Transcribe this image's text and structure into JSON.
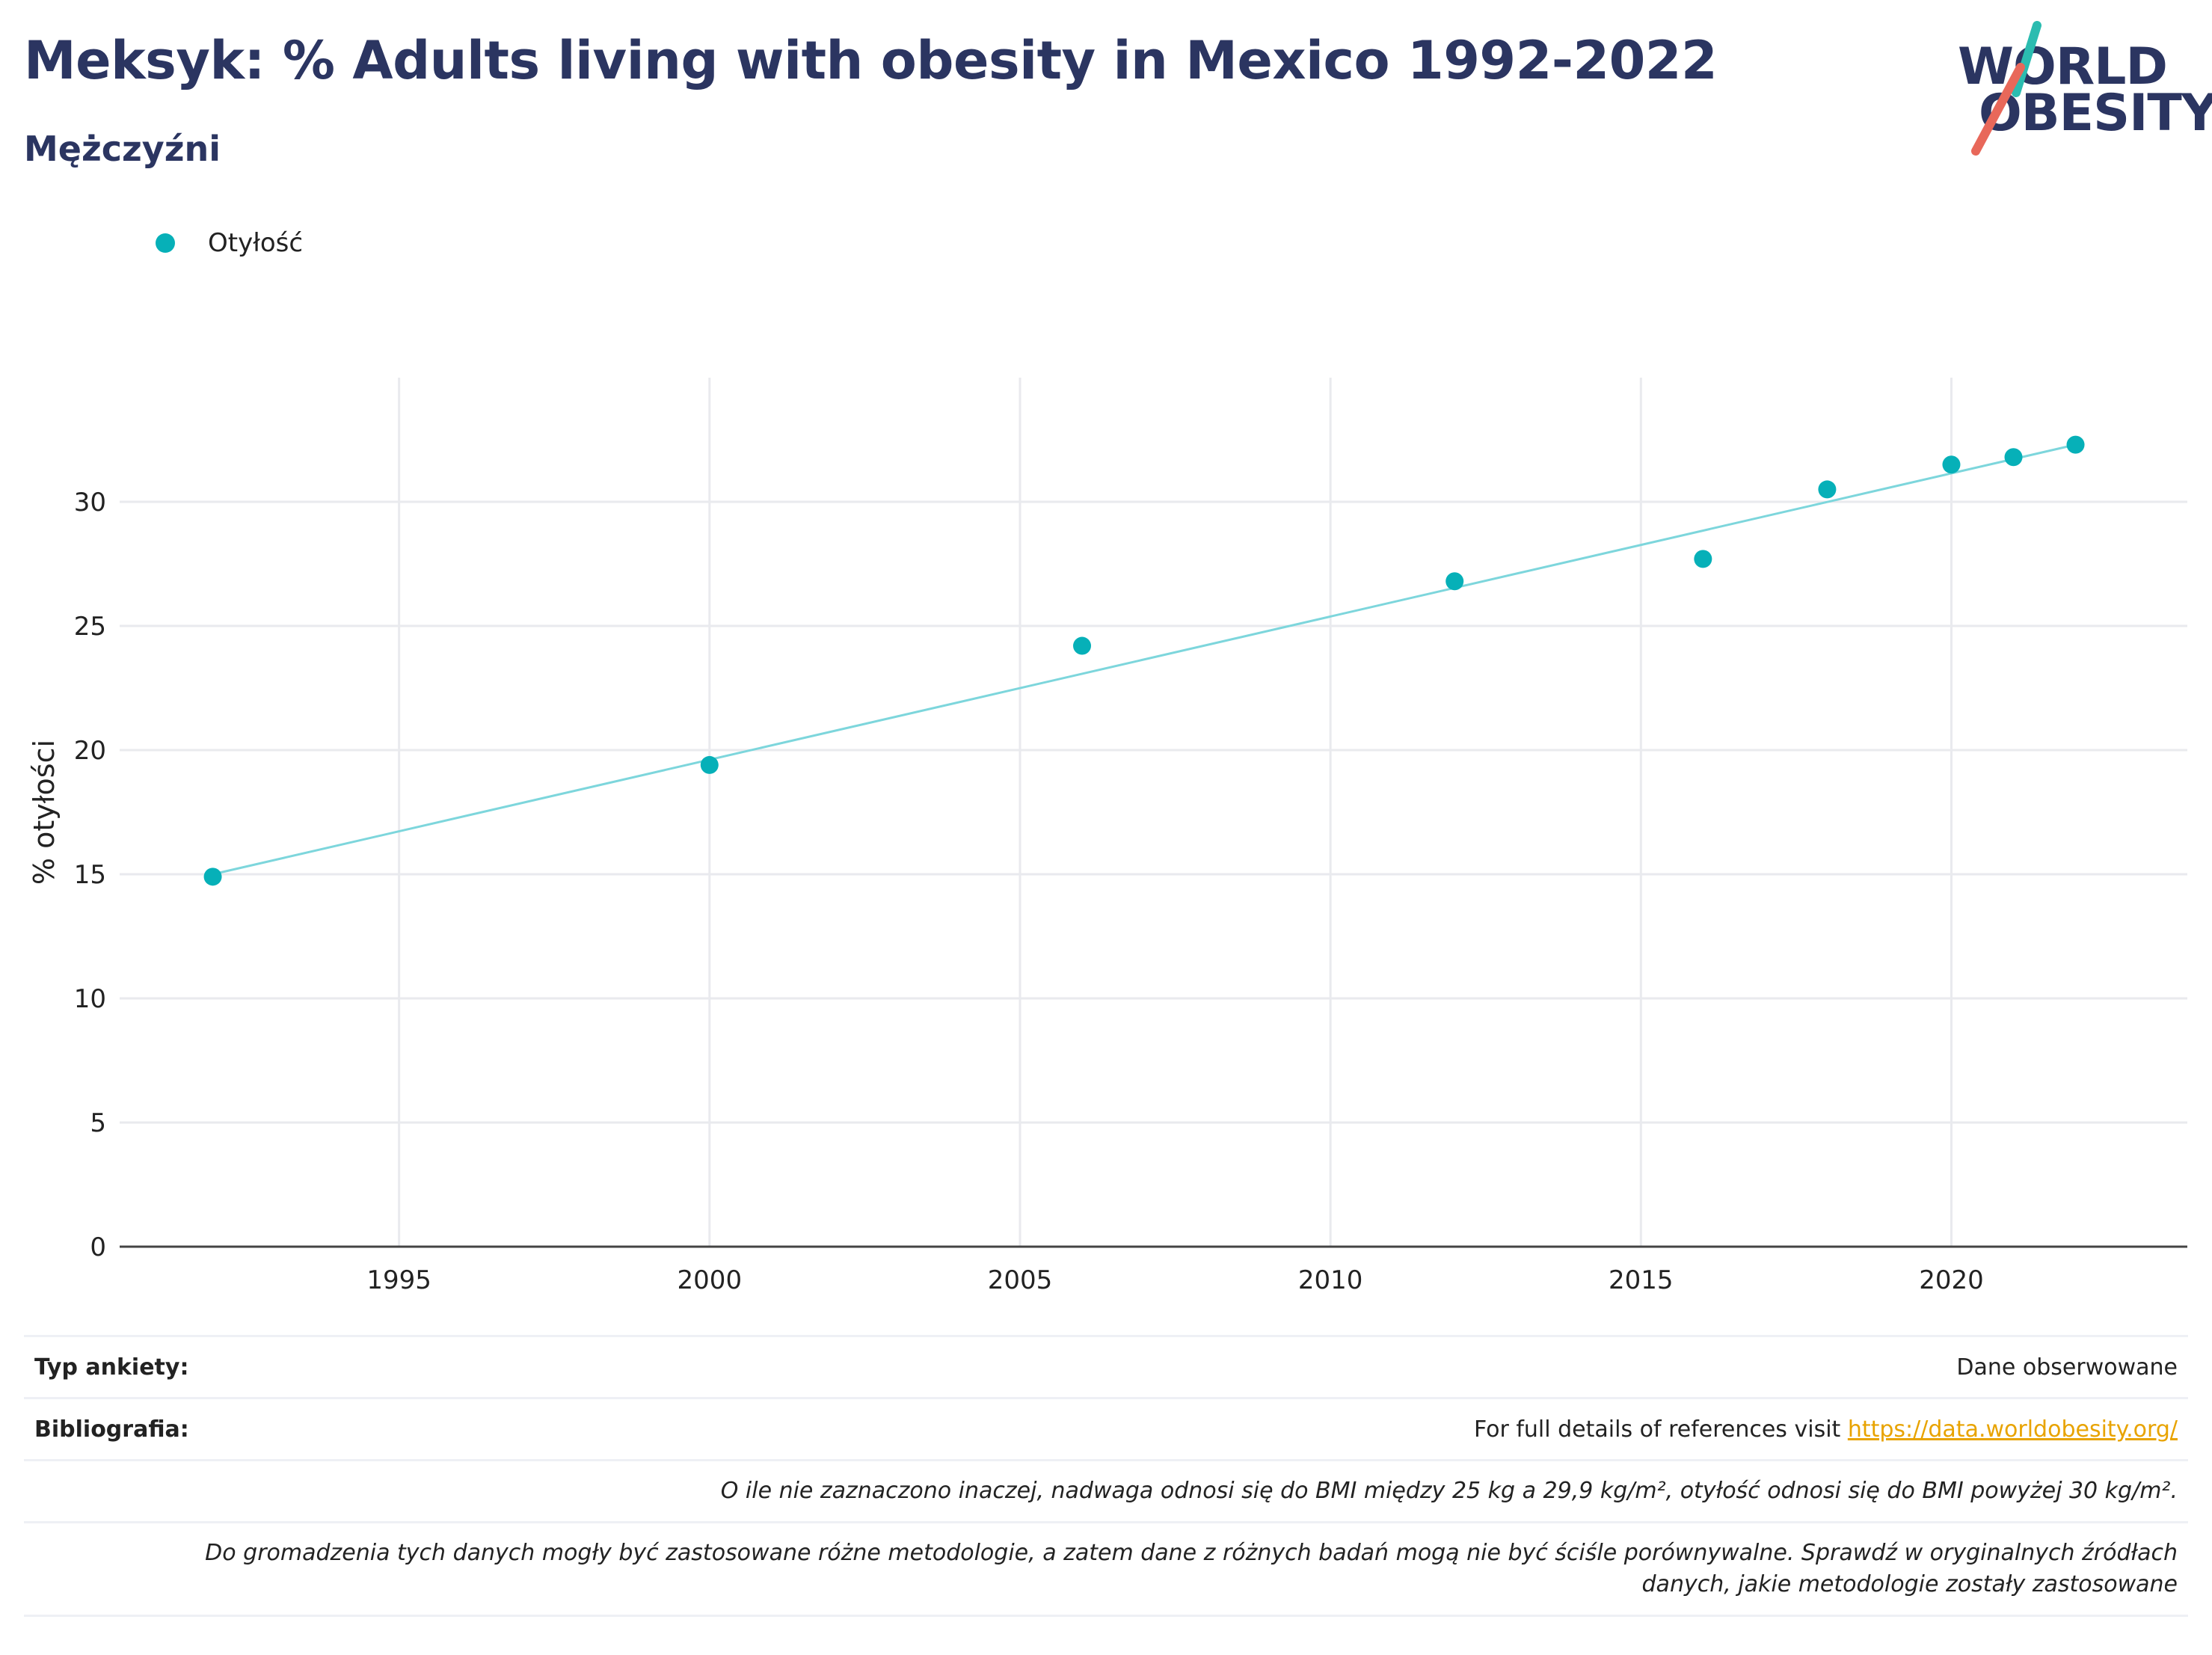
{
  "header": {
    "title": "Meksyk: % Adults living with obesity in Mexico 1992-2022",
    "subtitle": "Mężczyźni"
  },
  "logo": {
    "line1": "WORLD",
    "line2": "OBESITY",
    "accent_teal": "#2bbcb0",
    "accent_red": "#e8685a"
  },
  "legend": {
    "label": "Otyłość"
  },
  "chart_data": {
    "type": "scatter",
    "ylabel": "% otyłości",
    "xlabel": "",
    "xlim": [
      1990.5,
      2023.8
    ],
    "ylim": [
      0,
      35
    ],
    "x_ticks": [
      1995,
      2000,
      2005,
      2010,
      2015,
      2020
    ],
    "y_ticks": [
      0,
      5,
      10,
      15,
      20,
      25,
      30
    ],
    "grid": true,
    "series": [
      {
        "name": "Otyłość",
        "color": "#06b0b8",
        "points": [
          {
            "x": 1992,
            "y": 14.9
          },
          {
            "x": 2000,
            "y": 19.4
          },
          {
            "x": 2006,
            "y": 24.2
          },
          {
            "x": 2012,
            "y": 26.8
          },
          {
            "x": 2016,
            "y": 27.7
          },
          {
            "x": 2018,
            "y": 30.5
          },
          {
            "x": 2020,
            "y": 31.5
          },
          {
            "x": 2021,
            "y": 31.8
          },
          {
            "x": 2022,
            "y": 32.3
          }
        ]
      }
    ],
    "trend_line": {
      "color": "#7dd6dc",
      "start": {
        "x": 1992,
        "y": 15.0
      },
      "end": {
        "x": 2022,
        "y": 32.3
      }
    }
  },
  "footer": {
    "survey_key": "Typ ankiety:",
    "survey_value": "Dane obserwowane",
    "biblio_key": "Bibliografia:",
    "biblio_text": "For full details of references visit ",
    "biblio_link": "https://data.worldobesity.org/",
    "note1": "O ile nie zaznaczono inaczej, nadwaga odnosi się do BMI między 25 kg a 29,9 kg/m², otyłość odnosi się do BMI powyżej 30 kg/m².",
    "note2_line1": "Do gromadzenia tych danych mogły być zastosowane różne metodologie, a zatem dane z różnych badań mogą nie być ściśle porównywalne. Sprawdź w oryginalnych źródłach",
    "note2_line2": "danych, jakie metodologie zostały zastosowane"
  }
}
